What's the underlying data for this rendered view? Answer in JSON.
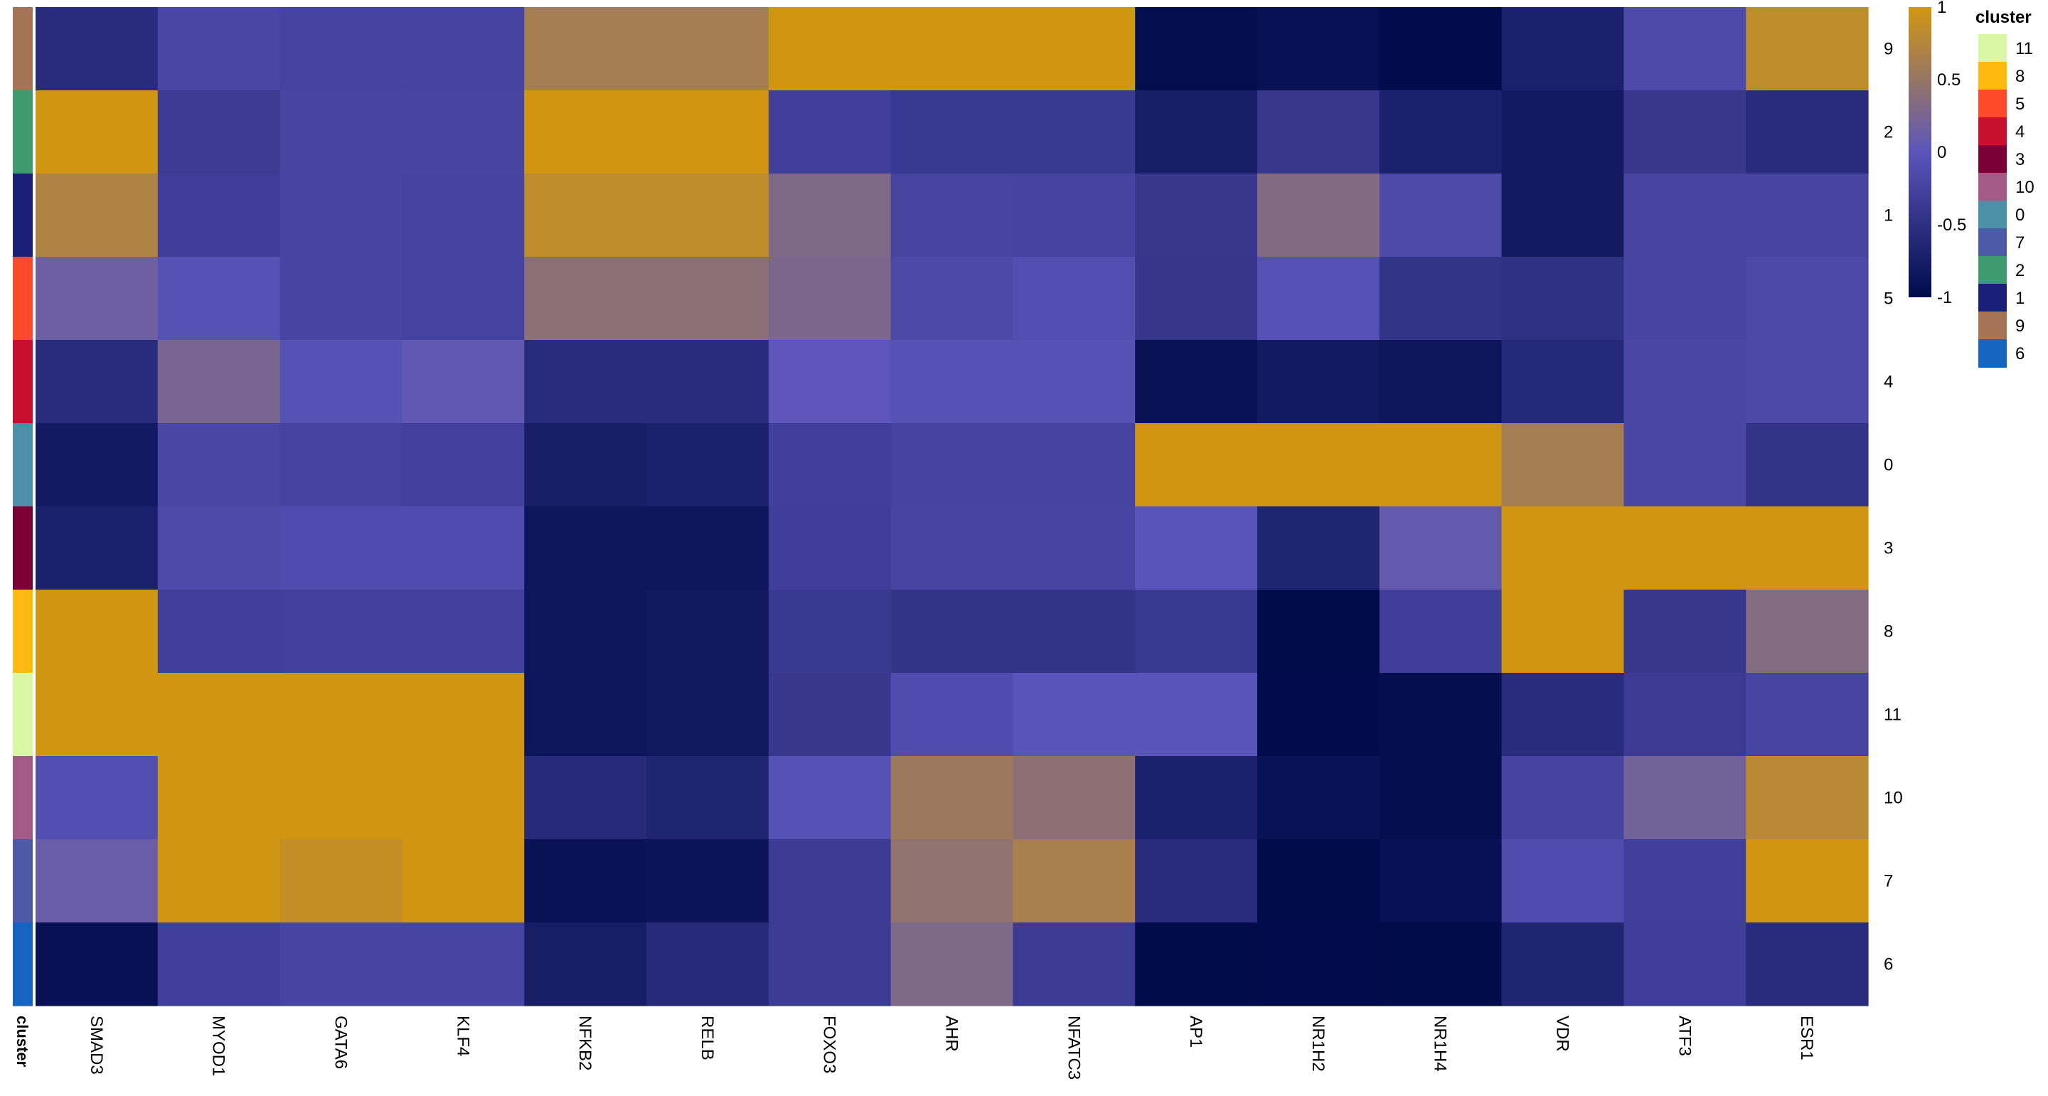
{
  "chart_data": {
    "type": "heatmap",
    "title": "",
    "columns": [
      "SMAD3",
      "MYOD1",
      "GATA6",
      "KLF4",
      "NFKB2",
      "RELB",
      "FOXO3",
      "AHR",
      "NFATC3",
      "AP1",
      "NR1H2",
      "NR1H4",
      "VDR",
      "ATF3",
      "ESR1"
    ],
    "rows": [
      "9",
      "2",
      "1",
      "5",
      "4",
      "0",
      "3",
      "8",
      "11",
      "10",
      "7",
      "6"
    ],
    "row_annotation_label": "cluster",
    "values": [
      [
        -0.55,
        -0.2,
        -0.25,
        -0.25,
        0.62,
        0.62,
        1,
        1,
        1,
        -0.95,
        -0.92,
        -0.98,
        -0.7,
        -0.15,
        0.85
      ],
      [
        1,
        -0.35,
        -0.22,
        -0.22,
        1,
        1,
        -0.3,
        -0.38,
        -0.38,
        -0.75,
        -0.4,
        -0.7,
        -0.8,
        -0.4,
        -0.55
      ],
      [
        0.7,
        -0.32,
        -0.22,
        -0.25,
        0.85,
        0.85,
        0.3,
        -0.22,
        -0.25,
        -0.4,
        0.33,
        -0.15,
        -0.8,
        -0.22,
        -0.22
      ],
      [
        0.15,
        -0.05,
        -0.22,
        -0.25,
        0.4,
        0.4,
        0.28,
        -0.18,
        -0.1,
        -0.42,
        -0.05,
        -0.45,
        -0.5,
        -0.22,
        -0.18
      ],
      [
        -0.55,
        0.25,
        -0.05,
        0.05,
        -0.55,
        -0.55,
        0.02,
        -0.05,
        -0.05,
        -0.9,
        -0.8,
        -0.85,
        -0.6,
        -0.2,
        -0.18
      ],
      [
        -0.8,
        -0.2,
        -0.25,
        -0.28,
        -0.75,
        -0.7,
        -0.3,
        -0.25,
        -0.25,
        1,
        1,
        1,
        0.62,
        -0.2,
        -0.45
      ],
      [
        -0.7,
        -0.15,
        -0.12,
        -0.12,
        -0.85,
        -0.85,
        -0.32,
        -0.22,
        -0.22,
        -0.02,
        -0.65,
        0.08,
        1,
        1,
        1
      ],
      [
        1,
        -0.3,
        -0.28,
        -0.28,
        -0.85,
        -0.82,
        -0.38,
        -0.45,
        -0.45,
        -0.38,
        -1,
        -0.32,
        1,
        -0.4,
        0.35
      ],
      [
        1,
        1,
        1,
        1,
        -0.85,
        -0.82,
        -0.4,
        -0.12,
        -0.02,
        -0.02,
        -0.98,
        -0.95,
        -0.55,
        -0.35,
        -0.22
      ],
      [
        -0.1,
        1,
        1,
        1,
        -0.58,
        -0.65,
        -0.05,
        0.55,
        0.42,
        -0.7,
        -0.9,
        -0.95,
        -0.25,
        0.2,
        0.8
      ],
      [
        0.12,
        1,
        0.88,
        1,
        -0.9,
        -0.88,
        -0.35,
        0.45,
        0.65,
        -0.55,
        -1,
        -0.92,
        -0.12,
        -0.3,
        1
      ],
      [
        -0.92,
        -0.3,
        -0.22,
        -0.22,
        -0.75,
        -0.58,
        -0.35,
        0.3,
        -0.35,
        -1,
        -0.98,
        -1,
        -0.65,
        -0.32,
        -0.55
      ]
    ],
    "color_scale": {
      "stops": [
        {
          "value": -1,
          "color": "#000b4a"
        },
        {
          "value": 0,
          "color": "#5b55bb"
        },
        {
          "value": 1,
          "color": "#d19611"
        }
      ],
      "ticks": [
        "1",
        "0.5",
        "0",
        "-0.5",
        "-1"
      ]
    },
    "legend": {
      "title": "cluster",
      "entries": [
        {
          "label": "11",
          "color": "#d9f7a4"
        },
        {
          "label": "8",
          "color": "#ffb90f"
        },
        {
          "label": "5",
          "color": "#ff4a2a"
        },
        {
          "label": "4",
          "color": "#c8102e"
        },
        {
          "label": "3",
          "color": "#7a0035"
        },
        {
          "label": "10",
          "color": "#a45a86"
        },
        {
          "label": "0",
          "color": "#4e8fa8"
        },
        {
          "label": "7",
          "color": "#4c5aa8"
        },
        {
          "label": "2",
          "color": "#3f9a6e"
        },
        {
          "label": "1",
          "color": "#1b1f77"
        },
        {
          "label": "9",
          "color": "#a57355"
        },
        {
          "label": "6",
          "color": "#1565c0"
        }
      ]
    },
    "row_annotation_colors": {
      "9": "#a57355",
      "2": "#3f9a6e",
      "1": "#1b1f77",
      "5": "#ff4a2a",
      "4": "#c8102e",
      "0": "#4e8fa8",
      "3": "#7a0035",
      "8": "#ffb90f",
      "11": "#d9f7a4",
      "10": "#a45a86",
      "7": "#4c5aa8",
      "6": "#1565c0"
    }
  }
}
